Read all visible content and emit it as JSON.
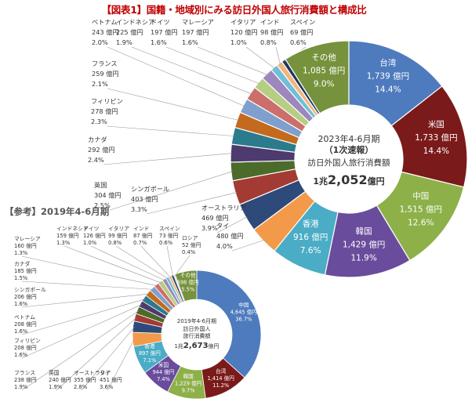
{
  "figure_title": "【図表1】国籍・地域別にみる訪日外国人旅行消費額と構成比",
  "reference_title": "【参考】2019年4-6月期",
  "chart_data": [
    {
      "type": "pie",
      "title": "2023年4-6月期",
      "subtitle": "（1次速報）",
      "center_label": "訪日外国人旅行消費額",
      "total": "1兆2,052億円",
      "total_prefix": "1兆",
      "total_number": "2,052",
      "total_unit": "億円",
      "slices": [
        {
          "name": "台湾",
          "value": 1739,
          "value_label": "1,739 億円",
          "share": "14.4%",
          "color": "#4e7bbd"
        },
        {
          "name": "米国",
          "value": 1733,
          "value_label": "1,733 億円",
          "share": "14.4%",
          "color": "#7b1a1a"
        },
        {
          "name": "中国",
          "value": 1515,
          "value_label": "1,515 億円",
          "share": "12.6%",
          "color": "#8db049"
        },
        {
          "name": "韓国",
          "value": 1429,
          "value_label": "1,429 億円",
          "share": "11.9%",
          "color": "#6a4c9c"
        },
        {
          "name": "香港",
          "value": 916,
          "value_label": "916 億円",
          "share": "7.6%",
          "color": "#4bacc6"
        },
        {
          "name": "タイ",
          "value": 480,
          "value_label": "480 億円",
          "share": "4.0%",
          "color": "#f39a4a"
        },
        {
          "name": "オーストラリア",
          "value": 469,
          "value_label": "469 億円",
          "share": "3.9%",
          "color": "#2e4a7a"
        },
        {
          "name": "シンガポール",
          "value": 403,
          "value_label": "403 億円",
          "share": "3.3%",
          "color": "#a33b34"
        },
        {
          "name": "英国",
          "value": 304,
          "value_label": "304 億円",
          "share": "2.5%",
          "color": "#4b6b2a"
        },
        {
          "name": "カナダ",
          "value": 292,
          "value_label": "292 億円",
          "share": "2.4%",
          "color": "#4d3a6e"
        },
        {
          "name": "フィリピン",
          "value": 278,
          "value_label": "278 億円",
          "share": "2.3%",
          "color": "#2b7b8c"
        },
        {
          "name": "フランス",
          "value": 259,
          "value_label": "259 億円",
          "share": "2.1%",
          "color": "#c46a1e"
        },
        {
          "name": "ベトナム",
          "value": 243,
          "value_label": "243 億円",
          "share": "2.0%",
          "color": "#7f9fcf"
        },
        {
          "name": "インドネシア",
          "value": 225,
          "value_label": "225 億円",
          "share": "1.9%",
          "color": "#cc6f6a"
        },
        {
          "name": "ドイツ",
          "value": 197,
          "value_label": "197 億円",
          "share": "1.6%",
          "color": "#b6ce84"
        },
        {
          "name": "マレーシア",
          "value": 197,
          "value_label": "197 億円",
          "share": "1.6%",
          "color": "#9d87bd"
        },
        {
          "name": "イタリア",
          "value": 120,
          "value_label": "120 億円",
          "share": "1.0%",
          "color": "#6fc0d6"
        },
        {
          "name": "インド",
          "value": 98,
          "value_label": "98 億円",
          "share": "0.8%",
          "color": "#f5b57a"
        },
        {
          "name": "スペイン",
          "value": 69,
          "value_label": "69 億円",
          "share": "0.6%",
          "color": "#1f3864"
        },
        {
          "name": "その他",
          "value": 1085,
          "value_label": "1,085 億円",
          "share": "9.0%",
          "color": "#76923c"
        }
      ]
    },
    {
      "type": "pie",
      "title": "2019年4-6月期",
      "center_label": "訪日外国人旅行消費額",
      "total": "1兆2,673億円",
      "total_prefix": "1兆",
      "total_number": "2,673",
      "total_unit": "億円",
      "slices": [
        {
          "name": "中国",
          "value": 4645,
          "value_label": "4,645 億円",
          "share": "36.7%",
          "color": "#4e7bbd"
        },
        {
          "name": "台湾",
          "value": 1414,
          "value_label": "1,414 億円",
          "share": "11.2%",
          "color": "#7b1a1a"
        },
        {
          "name": "韓国",
          "value": 1229,
          "value_label": "1,229 億円",
          "share": "9.7%",
          "color": "#8db049"
        },
        {
          "name": "米国",
          "value": 944,
          "value_label": "944 億円",
          "share": "7.4%",
          "color": "#6a4c9c"
        },
        {
          "name": "香港",
          "value": 897,
          "value_label": "897 億円",
          "share": "7.1%",
          "color": "#4bacc6"
        },
        {
          "name": "タイ",
          "value": 451,
          "value_label": "451 億円",
          "share": "3.6%",
          "color": "#f39a4a"
        },
        {
          "name": "オーストラリア",
          "value": 355,
          "value_label": "355 億円",
          "share": "2.8%",
          "color": "#2e4a7a"
        },
        {
          "name": "英国",
          "value": 240,
          "value_label": "240 億円",
          "share": "1.9%",
          "color": "#a33b34"
        },
        {
          "name": "フランス",
          "value": 238,
          "value_label": "238 億円",
          "share": "1.9%",
          "color": "#4b6b2a"
        },
        {
          "name": "フィリピン",
          "value": 208,
          "value_label": "208 億円",
          "share": "1.6%",
          "color": "#4d3a6e"
        },
        {
          "name": "ベトナム",
          "value": 208,
          "value_label": "208 億円",
          "share": "1.6%",
          "color": "#2b7b8c"
        },
        {
          "name": "シンガポール",
          "value": 206,
          "value_label": "206 億円",
          "share": "1.6%",
          "color": "#c46a1e"
        },
        {
          "name": "カナダ",
          "value": 185,
          "value_label": "185 億円",
          "share": "1.5%",
          "color": "#7f9fcf"
        },
        {
          "name": "マレーシア",
          "value": 160,
          "value_label": "160 億円",
          "share": "1.3%",
          "color": "#cc6f6a"
        },
        {
          "name": "インドネシア",
          "value": 159,
          "value_label": "159 億円",
          "share": "1.3%",
          "color": "#b6ce84"
        },
        {
          "name": "ドイツ",
          "value": 126,
          "value_label": "126 億円",
          "share": "1.0%",
          "color": "#9d87bd"
        },
        {
          "name": "イタリア",
          "value": 99,
          "value_label": "99 億円",
          "share": "0.8%",
          "color": "#6fc0d6"
        },
        {
          "name": "インド",
          "value": 87,
          "value_label": "87 億円",
          "share": "0.7%",
          "color": "#f5b57a"
        },
        {
          "name": "スペイン",
          "value": 73,
          "value_label": "73 億円",
          "share": "0.6%",
          "color": "#1f3864"
        },
        {
          "name": "ロシア",
          "value": 52,
          "value_label": "52 億円",
          "share": "0.4%",
          "color": "#c9d8ea"
        },
        {
          "name": "その他",
          "value": 698,
          "value_label": "698 億円",
          "share": "5.5%",
          "color": "#76923c"
        }
      ]
    }
  ]
}
